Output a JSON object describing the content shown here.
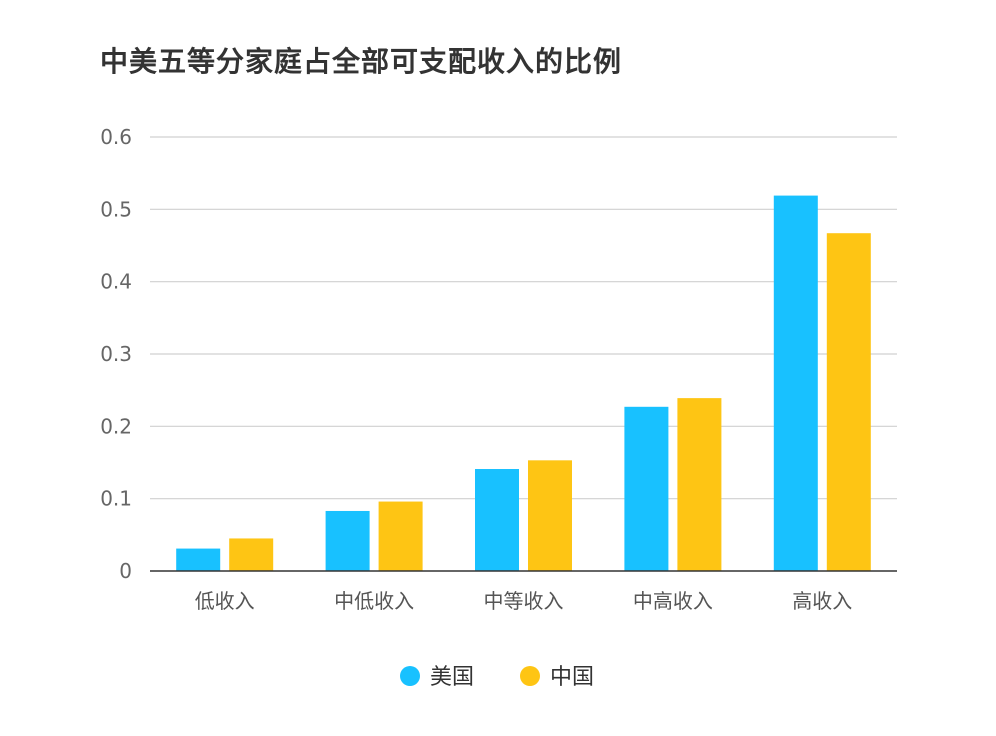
{
  "chart_data": {
    "type": "bar",
    "title": "中美五等分家庭占全部可支配收入的比例",
    "categories": [
      "低收入",
      "中低收入",
      "中等收入",
      "中高收入",
      "高收入"
    ],
    "series": [
      {
        "name": "美国",
        "color": "#18C1FF",
        "values": [
          0.031,
          0.083,
          0.141,
          0.227,
          0.519
        ]
      },
      {
        "name": "中国",
        "color": "#FEC514",
        "values": [
          0.045,
          0.096,
          0.153,
          0.239,
          0.467
        ]
      }
    ],
    "yticks": [
      "0",
      "0.1",
      "0.2",
      "0.3",
      "0.4",
      "0.5",
      "0.6"
    ],
    "ylim": [
      0,
      0.6
    ],
    "grid": true,
    "legend_position": "bottom-center"
  }
}
